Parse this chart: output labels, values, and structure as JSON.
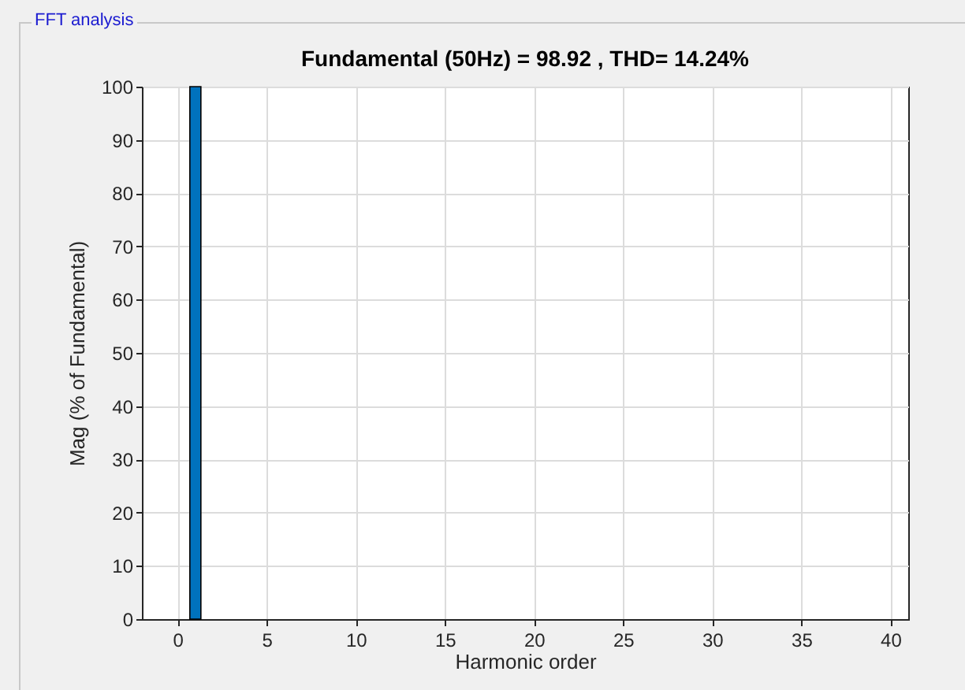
{
  "chart_data": {
    "type": "bar",
    "title": "Fundamental (50Hz) = 98.92 , THD= 14.24%",
    "xlabel": "Harmonic order",
    "ylabel": "Mag (% of Fundamental)",
    "annotations": [
      "FFT analysis"
    ],
    "x": [
      1
    ],
    "series": [
      {
        "color": "#0072bd",
        "values": [
          100
        ]
      }
    ],
    "xlim": [
      -2,
      41
    ],
    "xticks": [
      0,
      5,
      10,
      15,
      20,
      25,
      30,
      35,
      40
    ],
    "ylim": [
      0,
      100
    ],
    "yticks": [
      0,
      10,
      20,
      30,
      40,
      50,
      60,
      70,
      80,
      90,
      100
    ],
    "grid": true
  }
}
